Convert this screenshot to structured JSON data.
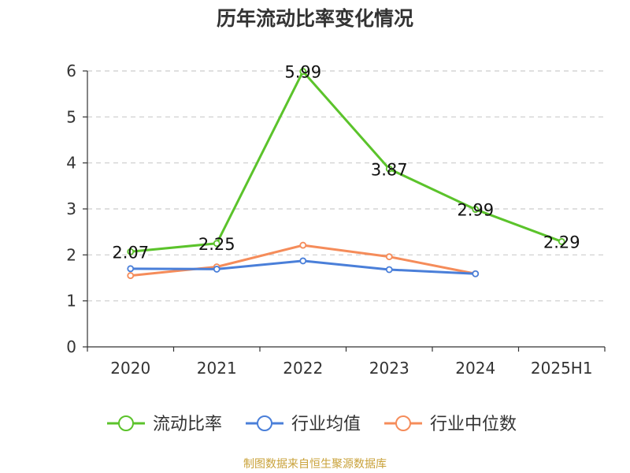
{
  "title": "历年流动比率变化情况",
  "source": "制图数据来自恒生聚源数据库",
  "colors": {
    "current_ratio": "#5bc32b",
    "industry_avg": "#4a7fd9",
    "industry_median": "#f58c5a",
    "grid": "#cccccc",
    "axis": "#333333"
  },
  "chart_data": {
    "type": "line",
    "categories": [
      "2020",
      "2021",
      "2022",
      "2023",
      "2024",
      "2025H1"
    ],
    "ylim": [
      0,
      6
    ],
    "yticks": [
      0,
      1,
      2,
      3,
      4,
      5,
      6
    ],
    "grid": true,
    "legend_position": "bottom",
    "series": [
      {
        "name": "流动比率",
        "color_key": "current_ratio",
        "values": [
          2.07,
          2.25,
          5.99,
          3.87,
          2.99,
          2.29
        ],
        "labels": true
      },
      {
        "name": "行业均值",
        "color_key": "industry_avg",
        "values": [
          1.7,
          1.69,
          1.87,
          1.68,
          1.59,
          null
        ],
        "labels": false
      },
      {
        "name": "行业中位数",
        "color_key": "industry_median",
        "values": [
          1.55,
          1.74,
          2.21,
          1.96,
          1.59,
          null
        ],
        "labels": false
      }
    ]
  }
}
